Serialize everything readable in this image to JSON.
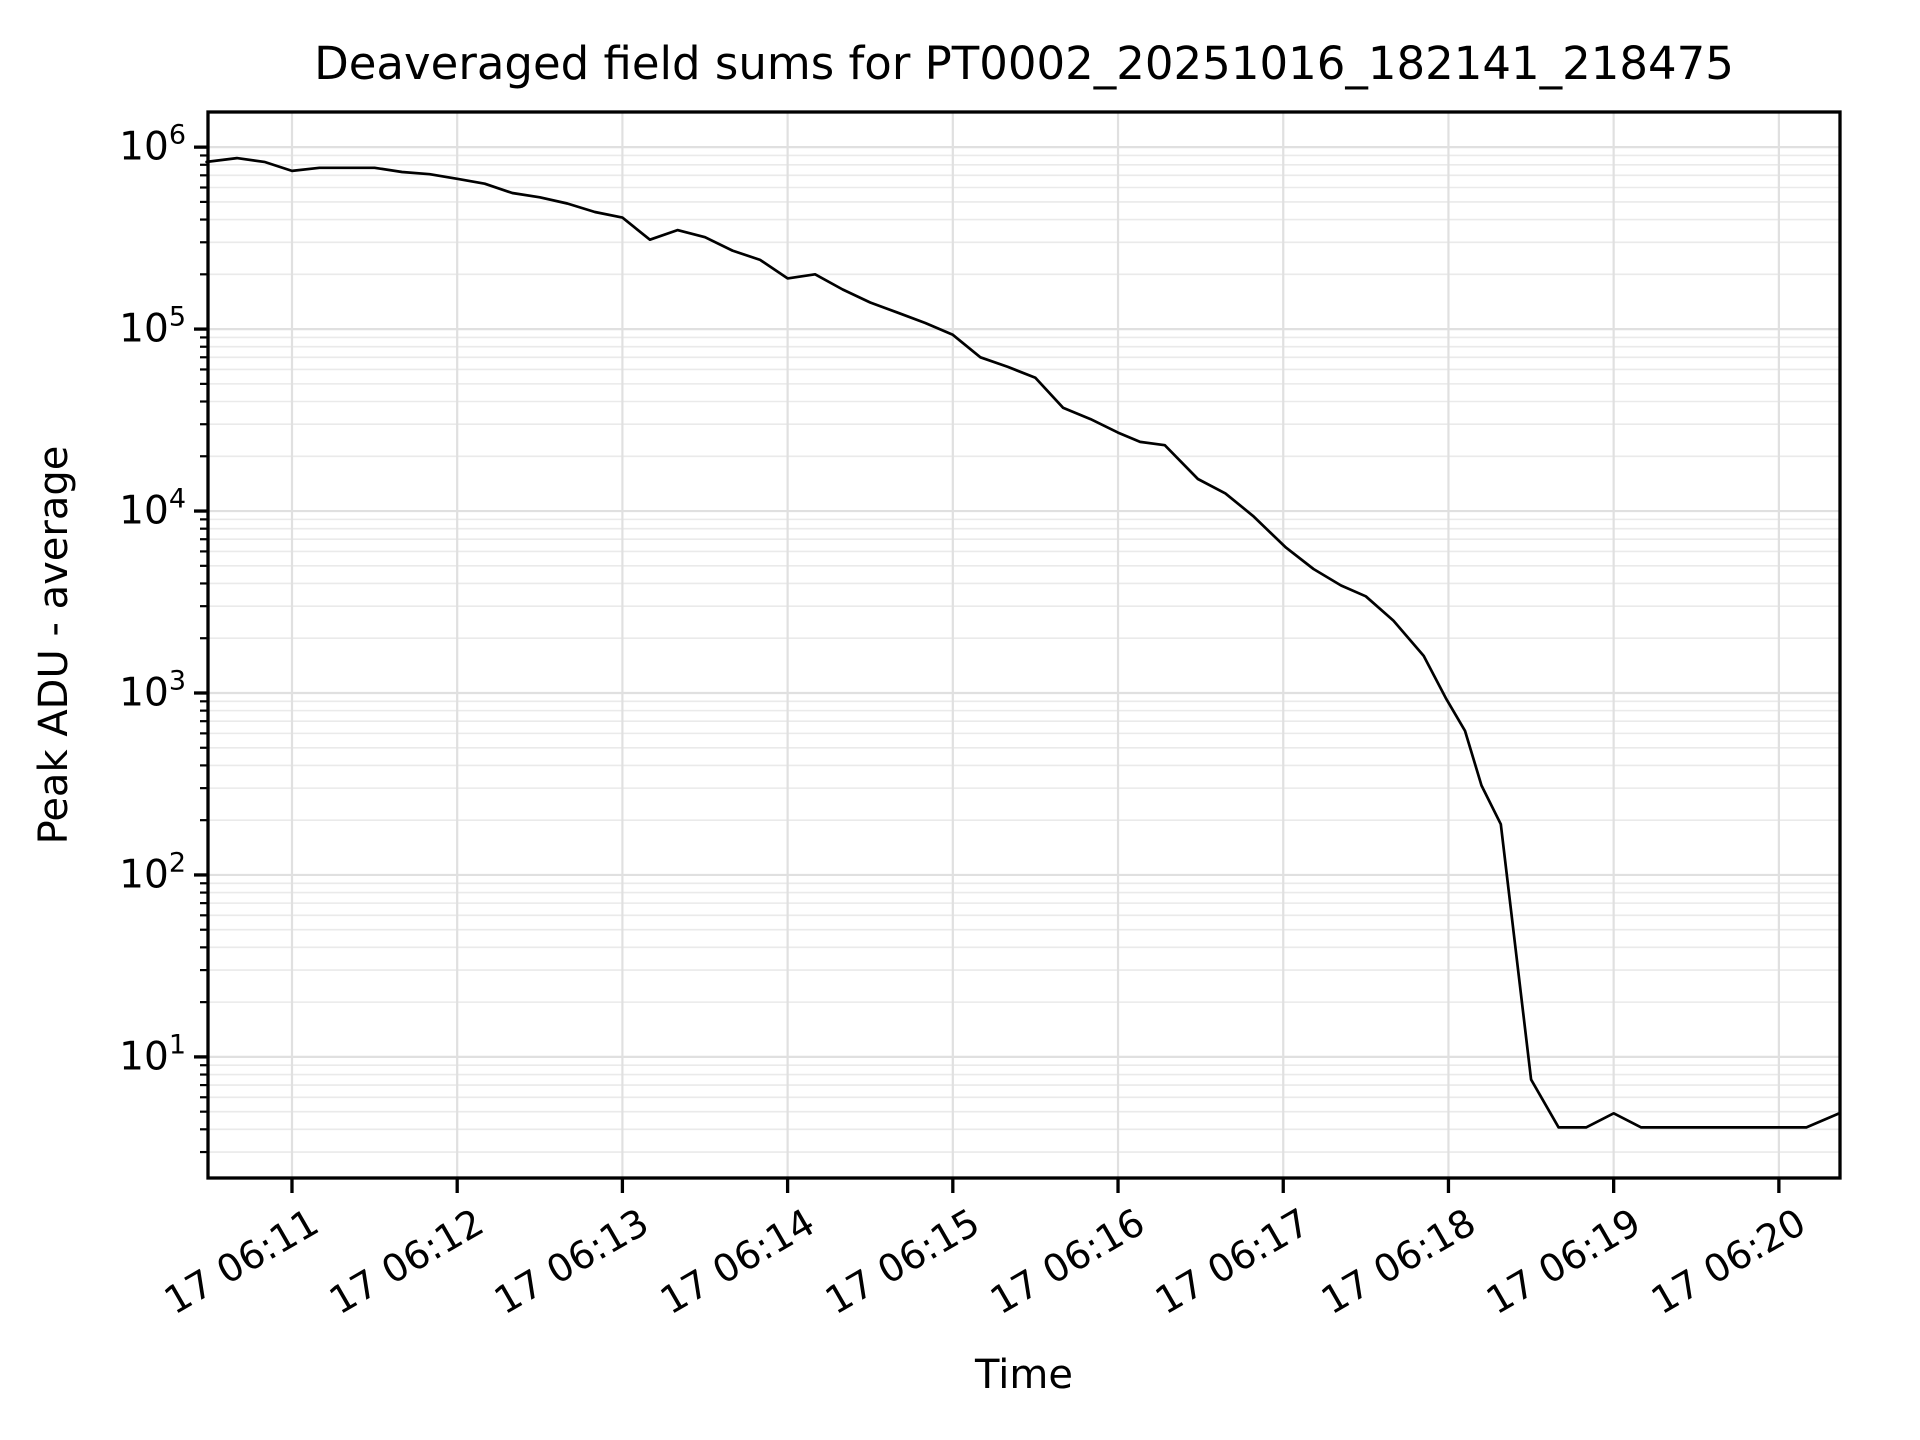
{
  "title": "Deaveraged field sums for PT0002_20251016_182141_218475",
  "chart_data": {
    "type": "line",
    "title": "Deaveraged field sums for PT0002_20251016_182141_218475",
    "xlabel": "Time",
    "ylabel": "Peak ADU - average",
    "yscale": "log",
    "grid": "major+minor",
    "legend": "none",
    "line_color": "#000000",
    "grid_major_color": "#e0e0e0",
    "grid_minor_color": "#eaeaea",
    "ylim": [
      2.16,
      1560000
    ],
    "xlim_seconds_after_0600": [
      629.5,
      1222.2
    ],
    "y_tick_exponents": [
      1,
      2,
      3,
      4,
      5,
      6
    ],
    "y_tick_base": "10",
    "x_ticks": [
      {
        "seconds": 660,
        "label": "17 06:11"
      },
      {
        "seconds": 720,
        "label": "17 06:12"
      },
      {
        "seconds": 780,
        "label": "17 06:13"
      },
      {
        "seconds": 840,
        "label": "17 06:14"
      },
      {
        "seconds": 900,
        "label": "17 06:15"
      },
      {
        "seconds": 960,
        "label": "17 06:16"
      },
      {
        "seconds": 1020,
        "label": "17 06:17"
      },
      {
        "seconds": 1080,
        "label": "17 06:18"
      },
      {
        "seconds": 1140,
        "label": "17 06:19"
      },
      {
        "seconds": 1200,
        "label": "17 06:20"
      }
    ],
    "series": [
      {
        "name": "deaveraged-field-sum",
        "t_seconds_after_0600": [
          629,
          640,
          650,
          660,
          670,
          680,
          690,
          700,
          710,
          720,
          730,
          740,
          750,
          760,
          770,
          780,
          790,
          800,
          810,
          820,
          830,
          840,
          850,
          860,
          870,
          880,
          890,
          900,
          910,
          920,
          930,
          940,
          950,
          960,
          968,
          977,
          989,
          999,
          1009,
          1021,
          1031,
          1041,
          1050,
          1060,
          1071,
          1079,
          1086,
          1092,
          1099,
          1110,
          1120,
          1130,
          1140,
          1150,
          1160,
          1171,
          1181,
          1190,
          1201,
          1210,
          1222
        ],
        "values": [
          830000,
          870000,
          830000,
          740000,
          770000,
          770000,
          770000,
          730000,
          710000,
          670000,
          630000,
          560000,
          530000,
          490000,
          440000,
          410000,
          310000,
          350000,
          320000,
          270000,
          240000,
          190000,
          200000,
          165000,
          140000,
          123000,
          108000,
          93000,
          70000,
          62000,
          54000,
          37000,
          32000,
          27000,
          24000,
          23000,
          15000,
          12500,
          9400,
          6300,
          4800,
          3900,
          3400,
          2500,
          1600,
          940,
          620,
          310,
          190,
          7.5,
          4.1,
          4.1,
          4.9,
          4.1,
          4.1,
          4.1,
          4.1,
          4.1,
          4.1,
          4.1,
          4.9
        ]
      }
    ]
  }
}
